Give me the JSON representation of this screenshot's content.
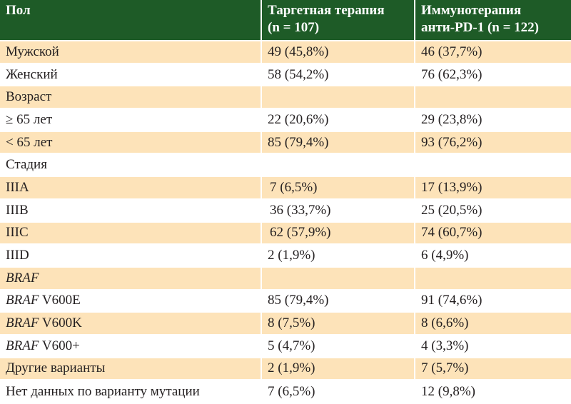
{
  "header": {
    "col1": "Пол",
    "col2_line1": "Таргетная терапия",
    "col2_line2": "(n = 107)",
    "col3_line1": "Иммунотерапия",
    "col3_line2": "анти-PD-1 (n = 122)"
  },
  "rows": [
    {
      "label": "Мужской",
      "a": "49 (45,8%)",
      "b": "46 (37,7%)"
    },
    {
      "label": "Женский",
      "a": "58 (54,2%)",
      "b": "76 (62,3%)"
    },
    {
      "label": "Возраст",
      "a": "",
      "b": ""
    },
    {
      "label": "≥ 65 лет",
      "a": "22 (20,6%)",
      "b": "29 (23,8%)"
    },
    {
      "label": "< 65 лет",
      "a": "85 (79,4%)",
      "b": "93 (76,2%)"
    },
    {
      "label": "Стадия",
      "a": "",
      "b": ""
    },
    {
      "label": "IIIA",
      "a": "7 (6,5%)",
      "b": "17 (13,9%)"
    },
    {
      "label": "IIIB",
      "a": "36 (33,7%)",
      "b": "25 (20,5%)"
    },
    {
      "label": "IIIC",
      "a": "62 (57,9%)",
      "b": "74 (60,7%)"
    },
    {
      "label": "IIID",
      "a": "2 (1,9%)",
      "b": "6 (4,9%)"
    },
    {
      "label_italic": "BRAF",
      "label_rest": "",
      "a": "",
      "b": ""
    },
    {
      "label_italic": "BRAF",
      "label_rest": " V600E",
      "a": "85 (79,4%)",
      "b": "91 (74,6%)"
    },
    {
      "label_italic": "BRAF",
      "label_rest": " V600K",
      "a": "8 (7,5%)",
      "b": "8 (6,6%)"
    },
    {
      "label_italic": "BRAF",
      "label_rest": " V600+",
      "a": "5 (4,7%)",
      "b": "4 (3,3%)"
    },
    {
      "label": "Другие варианты",
      "a": "2 (1,9%)",
      "b": "7 (5,7%)"
    },
    {
      "label": "Нет данных по варианту мутации",
      "a": "7 (6,5%)",
      "b": "12 (9,8%)"
    }
  ],
  "colors": {
    "header_bg": "#1e5b27",
    "shade_bg": "#fde3b9"
  }
}
